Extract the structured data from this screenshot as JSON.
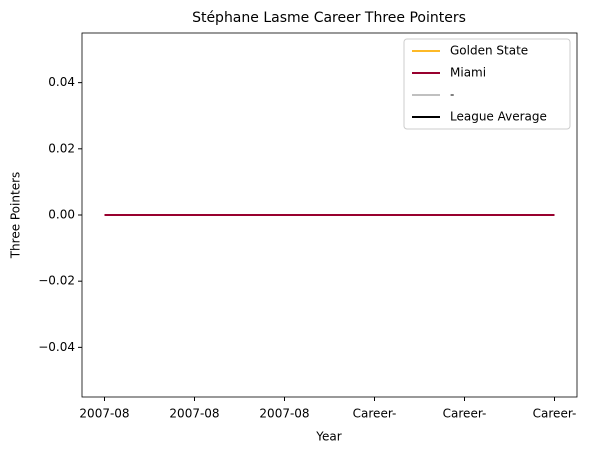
{
  "chart_data": {
    "type": "line",
    "title": "Stéphane Lasme Career Three Pointers",
    "xlabel": "Year",
    "ylabel": "Three Pointers",
    "categories": [
      "2007-08",
      "2007-08",
      "2007-08",
      "Career-",
      "Career-",
      "Career-"
    ],
    "series": [
      {
        "name": "Golden State",
        "color": "#FDB927",
        "values": [
          0,
          0,
          0,
          null,
          null,
          null
        ]
      },
      {
        "name": "Miami",
        "color": "#98002E",
        "values": [
          0,
          0,
          0,
          0,
          0,
          0
        ]
      },
      {
        "name": "-",
        "color": "#C0C0C0",
        "values": [
          null,
          null,
          null,
          null,
          null,
          null
        ]
      },
      {
        "name": "League Average",
        "color": "#000000",
        "values": [
          null,
          null,
          null,
          null,
          null,
          null
        ]
      }
    ],
    "ylim": [
      -0.055,
      0.055
    ],
    "yticks": [
      {
        "value": -0.04,
        "label": "−0.04"
      },
      {
        "value": -0.02,
        "label": "−0.02"
      },
      {
        "value": 0,
        "label": "0.00"
      },
      {
        "value": 0.02,
        "label": "0.02"
      },
      {
        "value": 0.04,
        "label": "0.04"
      }
    ],
    "legend": "upper right"
  }
}
